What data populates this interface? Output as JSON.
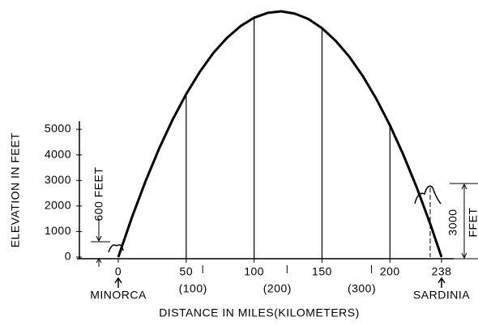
{
  "chart_data": {
    "type": "line",
    "x": [
      0,
      10,
      20,
      30,
      40,
      50,
      60,
      70,
      80,
      90,
      100,
      110,
      120,
      130,
      140,
      150,
      160,
      170,
      180,
      190,
      200,
      210,
      220,
      230,
      238
    ],
    "series": [
      {
        "color": "#000000",
        "values": [
          0,
          1550,
          2960,
          4240,
          5380,
          6380,
          7250,
          7990,
          8580,
          9040,
          9370,
          9560,
          9620,
          9530,
          9320,
          8960,
          8470,
          7850,
          7090,
          6190,
          5160,
          3990,
          2690,
          1250,
          0
        ]
      }
    ],
    "xlim": [
      0,
      238
    ],
    "xticks": [
      0,
      50,
      100,
      150,
      200,
      238
    ],
    "x2lim": [
      0,
      383
    ],
    "x2ticks": [
      {
        "value": 100,
        "label": "(100)"
      },
      {
        "value": 200,
        "label": "(200)"
      },
      {
        "value": 300,
        "label": "(300)"
      }
    ],
    "ylim": [
      0,
      10000
    ],
    "yticks": [
      0,
      1000,
      2000,
      3000,
      4000,
      5000
    ],
    "drop_lines_at": [
      5,
      10,
      15,
      20
    ],
    "y_label": "ELEVATION IN FEET",
    "x_label": "DISTANCE IN MILES(KILOMETERS)",
    "annotations": {
      "left_place": "MINORCA",
      "right_place": "SARDINIA",
      "left_height": "600 FEET",
      "right_height_number": "3000",
      "right_height_unit": "FFET"
    }
  }
}
